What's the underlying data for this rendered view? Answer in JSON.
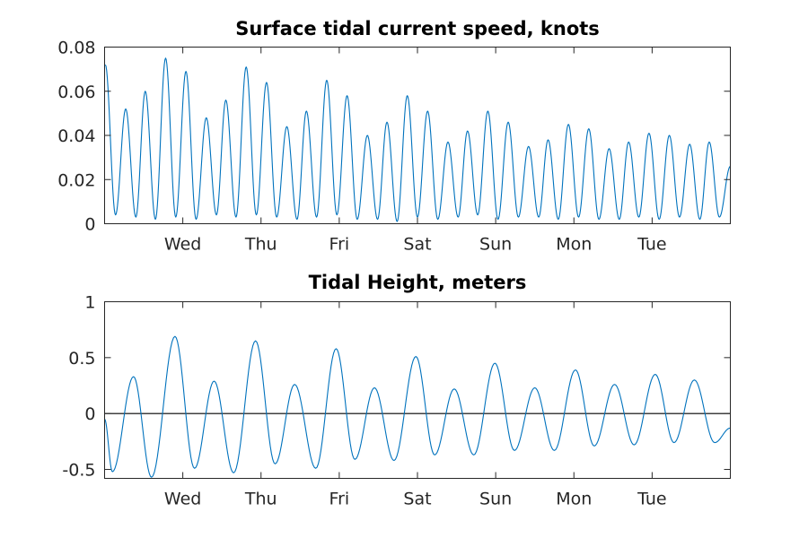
{
  "chart_data": [
    {
      "type": "line",
      "title": "Surface tidal current speed, knots",
      "xlabel": "",
      "ylabel": "",
      "xlim": [
        0,
        8.0
      ],
      "ylim": [
        0,
        0.08
      ],
      "yticks": [
        0,
        0.02,
        0.04,
        0.06,
        0.08
      ],
      "ytick_labels": [
        "0",
        "0.02",
        "0.04",
        "0.06",
        "0.08"
      ],
      "xticks": [
        1,
        2,
        3,
        4,
        5,
        6,
        7
      ],
      "xtick_labels": [
        "Wed",
        "Thu",
        "Fri",
        "Sat",
        "Sun",
        "Mon",
        "Tue"
      ],
      "grid": false,
      "color": "#0072BD",
      "series": [
        {
          "peaks": [
            [
              0.01,
              0.072
            ],
            [
              0.27,
              0.052
            ],
            [
              0.52,
              0.06
            ],
            [
              0.78,
              0.075
            ],
            [
              1.04,
              0.069
            ],
            [
              1.3,
              0.048
            ],
            [
              1.55,
              0.056
            ],
            [
              1.81,
              0.071
            ],
            [
              2.07,
              0.064
            ],
            [
              2.33,
              0.044
            ],
            [
              2.58,
              0.051
            ],
            [
              2.84,
              0.065
            ],
            [
              3.1,
              0.058
            ],
            [
              3.36,
              0.04
            ],
            [
              3.61,
              0.046
            ],
            [
              3.87,
              0.058
            ],
            [
              4.13,
              0.051
            ],
            [
              4.39,
              0.037
            ],
            [
              4.64,
              0.042
            ],
            [
              4.9,
              0.051
            ],
            [
              5.16,
              0.046
            ],
            [
              5.42,
              0.035
            ],
            [
              5.67,
              0.038
            ],
            [
              5.93,
              0.045
            ],
            [
              6.19,
              0.043
            ],
            [
              6.45,
              0.034
            ],
            [
              6.7,
              0.037
            ],
            [
              6.96,
              0.041
            ],
            [
              7.22,
              0.04
            ],
            [
              7.48,
              0.036
            ],
            [
              7.73,
              0.037
            ],
            [
              8.0,
              0.026
            ]
          ],
          "troughs": [
            [
              0.14,
              0.004
            ],
            [
              0.4,
              0.003
            ],
            [
              0.65,
              0.002
            ],
            [
              0.91,
              0.003
            ],
            [
              1.17,
              0.002
            ],
            [
              1.43,
              0.004
            ],
            [
              1.68,
              0.003
            ],
            [
              1.94,
              0.004
            ],
            [
              2.2,
              0.003
            ],
            [
              2.46,
              0.002
            ],
            [
              2.71,
              0.003
            ],
            [
              2.97,
              0.004
            ],
            [
              3.23,
              0.002
            ],
            [
              3.49,
              0.002
            ],
            [
              3.74,
              0.001
            ],
            [
              4.0,
              0.003
            ],
            [
              4.26,
              0.002
            ],
            [
              4.52,
              0.003
            ],
            [
              4.77,
              0.004
            ],
            [
              5.03,
              0.002
            ],
            [
              5.29,
              0.003
            ],
            [
              5.55,
              0.003
            ],
            [
              5.8,
              0.002
            ],
            [
              6.06,
              0.003
            ],
            [
              6.32,
              0.002
            ],
            [
              6.58,
              0.002
            ],
            [
              6.83,
              0.003
            ],
            [
              7.09,
              0.002
            ],
            [
              7.35,
              0.003
            ],
            [
              7.61,
              0.002
            ],
            [
              7.86,
              0.003
            ]
          ]
        }
      ]
    },
    {
      "type": "line",
      "title": "Tidal Height, meters",
      "xlabel": "",
      "ylabel": "",
      "xlim": [
        0,
        8.0
      ],
      "ylim": [
        -0.58,
        1.0
      ],
      "yticks": [
        -0.5,
        0,
        0.5,
        1
      ],
      "ytick_labels": [
        "-0.5",
        "0",
        "0.5",
        "1"
      ],
      "xticks": [
        1,
        2,
        3,
        4,
        5,
        6,
        7
      ],
      "xtick_labels": [
        "Wed",
        "Thu",
        "Fri",
        "Sat",
        "Sun",
        "Mon",
        "Tue"
      ],
      "zero_line": true,
      "grid": false,
      "color": "#0072BD",
      "series": [
        {
          "extrema": [
            [
              0.0,
              -0.05
            ],
            [
              0.1,
              -0.52
            ],
            [
              0.37,
              0.33
            ],
            [
              0.6,
              -0.57
            ],
            [
              0.9,
              0.69
            ],
            [
              1.15,
              -0.49
            ],
            [
              1.4,
              0.29
            ],
            [
              1.65,
              -0.53
            ],
            [
              1.93,
              0.65
            ],
            [
              2.18,
              -0.45
            ],
            [
              2.43,
              0.26
            ],
            [
              2.7,
              -0.49
            ],
            [
              2.96,
              0.58
            ],
            [
              3.2,
              -0.41
            ],
            [
              3.45,
              0.23
            ],
            [
              3.7,
              -0.42
            ],
            [
              3.98,
              0.51
            ],
            [
              4.22,
              -0.37
            ],
            [
              4.47,
              0.22
            ],
            [
              4.72,
              -0.37
            ],
            [
              4.99,
              0.45
            ],
            [
              5.24,
              -0.33
            ],
            [
              5.5,
              0.23
            ],
            [
              5.75,
              -0.33
            ],
            [
              6.02,
              0.39
            ],
            [
              6.26,
              -0.29
            ],
            [
              6.52,
              0.26
            ],
            [
              6.77,
              -0.28
            ],
            [
              7.04,
              0.35
            ],
            [
              7.28,
              -0.26
            ],
            [
              7.54,
              0.3
            ],
            [
              7.8,
              -0.26
            ],
            [
              8.0,
              -0.13
            ]
          ]
        }
      ]
    }
  ]
}
